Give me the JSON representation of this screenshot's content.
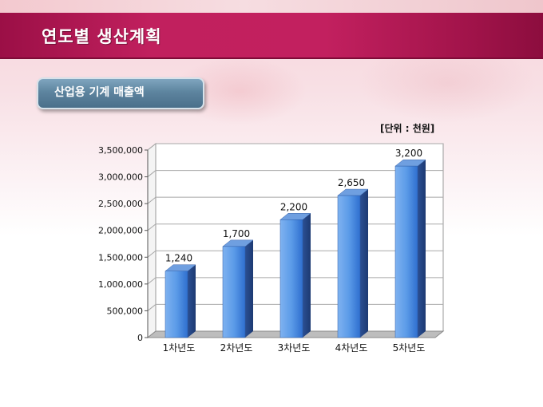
{
  "slide": {
    "title": "연도별 생산계획",
    "section_label": "산업용 기계 매출액",
    "unit_note": "[단위 : 천원]"
  },
  "colors": {
    "title_bar": "#c1205e",
    "bar_face": "#4f8ee0",
    "bar_side": "#2a4f96",
    "section_pill": "#5d849f"
  },
  "chart_data": {
    "type": "bar",
    "categories": [
      "1차년도",
      "2차년도",
      "3차년도",
      "4차년도",
      "5차년도"
    ],
    "values": [
      1240,
      1700,
      2200,
      2650,
      3200
    ],
    "value_labels": [
      "1,240",
      "1,700",
      "2,200",
      "2,650",
      "3,200"
    ],
    "ylim": [
      0,
      3500000
    ],
    "yticks": [
      0,
      500000,
      1000000,
      1500000,
      2000000,
      2500000,
      3000000,
      3500000
    ],
    "ytick_labels": [
      "0",
      "500,000",
      "1,000,000",
      "1,500,000",
      "2,000,000",
      "2,500,000",
      "3,000,000",
      "3,500,000"
    ],
    "grid": true,
    "style": "3d"
  }
}
